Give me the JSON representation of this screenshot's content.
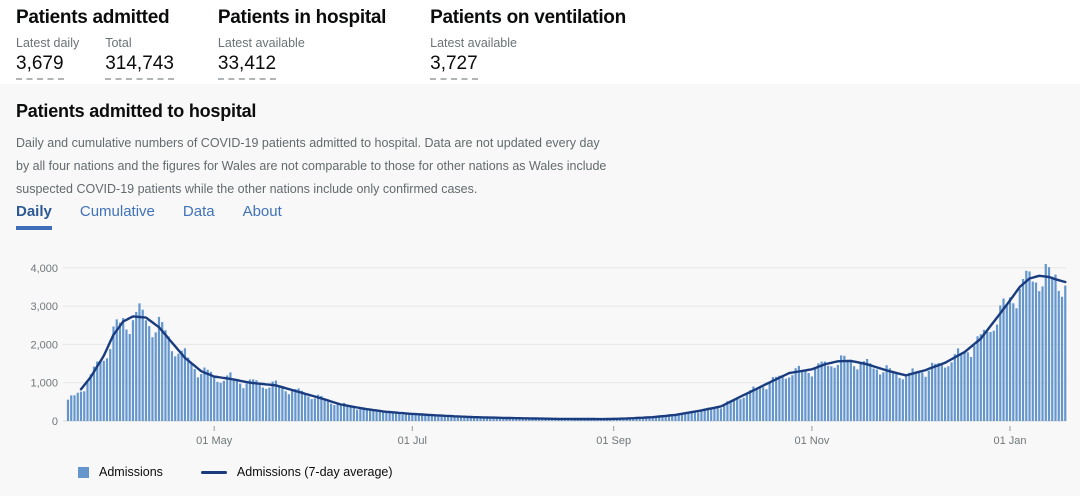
{
  "page": {
    "background": "#ffffff",
    "card_background": "#f8f8f8"
  },
  "summary_stats": [
    {
      "title": "Patients admitted",
      "metrics": [
        {
          "label": "Latest daily",
          "value": "3,679"
        },
        {
          "label": "Total",
          "value": "314,743"
        }
      ]
    },
    {
      "title": "Patients in hospital",
      "metrics": [
        {
          "label": "Latest available",
          "value": "33,412"
        }
      ]
    },
    {
      "title": "Patients on ventilation",
      "metrics": [
        {
          "label": "Latest available",
          "value": "3,727"
        }
      ]
    }
  ],
  "section": {
    "title": "Patients admitted to hospital",
    "description": "Daily and cumulative numbers of COVID-19 patients admitted to hospital. Data are not updated every day by all four nations and the figures for Wales are not comparable to those for other nations as Wales include suspected COVID-19 patients while the other nations include only confirmed cases.",
    "tabs": [
      {
        "label": "Daily",
        "active": true
      },
      {
        "label": "Cumulative",
        "active": false
      },
      {
        "label": "Data",
        "active": false
      },
      {
        "label": "About",
        "active": false
      }
    ]
  },
  "legend": [
    {
      "type": "square",
      "color": "#6496cd",
      "label": "Admissions"
    },
    {
      "type": "line",
      "color": "#1a3c7e",
      "label": "Admissions (7-day average)"
    }
  ],
  "chart_data": {
    "type": "bar",
    "title": "Patients admitted to hospital - Daily",
    "xlabel": "",
    "ylabel": "",
    "grid": true,
    "legend_position": "bottom-left",
    "x_axis": {
      "start_date": "2020-03-17",
      "end_date": "2021-01-18",
      "total_days": 308,
      "start_weekday_index": 2,
      "tick_labels": [
        "01 May",
        "01 Jul",
        "01 Sep",
        "01 Nov",
        "01 Jan"
      ],
      "tick_day_index": [
        45,
        106,
        168,
        229,
        290
      ]
    },
    "y_axis": {
      "ticks": [
        0,
        1000,
        2000,
        3000,
        4000
      ],
      "tick_labels": [
        "0",
        "1,000",
        "2,000",
        "3,000",
        "4,000"
      ],
      "ylim": [
        0,
        4300
      ]
    },
    "series": [
      {
        "name": "Admissions",
        "type": "bar",
        "color": "#6496cd"
      },
      {
        "name": "Admissions (7-day average)",
        "type": "line",
        "color": "#1a3c7e"
      }
    ],
    "seven_day_average_anchors": {
      "comment": "7-day-average values read off the chart at the given day indices (day 0 = 2020-03-17); daily bars fluctuate around this envelope",
      "day_index": [
        0,
        3,
        7,
        11,
        14,
        17,
        20,
        24,
        28,
        32,
        36,
        41,
        45,
        50,
        56,
        64,
        71,
        78,
        84,
        91,
        98,
        106,
        115,
        125,
        137,
        151,
        165,
        172,
        180,
        187,
        194,
        201,
        205,
        211,
        217,
        222,
        229,
        233,
        237,
        241,
        246,
        252,
        258,
        264,
        270,
        276,
        281,
        286,
        290,
        293,
        296,
        299,
        302,
        304,
        307
      ],
      "value": [
        520,
        720,
        1150,
        1700,
        2250,
        2600,
        2730,
        2700,
        2450,
        2050,
        1650,
        1300,
        1160,
        1100,
        1000,
        930,
        760,
        590,
        430,
        320,
        240,
        185,
        140,
        100,
        75,
        55,
        50,
        65,
        100,
        160,
        260,
        380,
        550,
        800,
        1050,
        1250,
        1350,
        1480,
        1560,
        1570,
        1480,
        1320,
        1190,
        1330,
        1520,
        1800,
        2150,
        2700,
        3150,
        3500,
        3720,
        3790,
        3760,
        3700,
        3630
      ],
      "peak_daily_value": 4100,
      "weekday_factors": [
        0.87,
        0.95,
        1.07,
        1.1,
        1.04,
        1.0,
        0.93
      ]
    }
  }
}
